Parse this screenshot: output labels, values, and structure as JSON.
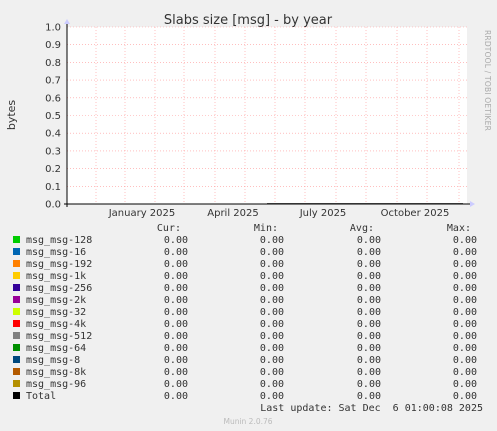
{
  "chart_data": {
    "type": "line",
    "title": "Slabs size [msg] - by year",
    "ylabel": "bytes",
    "ylim": [
      0,
      1
    ],
    "yticks": [
      "0.0",
      "0.1",
      "0.2",
      "0.3",
      "0.4",
      "0.5",
      "0.6",
      "0.7",
      "0.8",
      "0.9",
      "1.0"
    ],
    "xticks": [
      "January 2025",
      "April 2025",
      "July 2025",
      "October 2025"
    ],
    "grid": true,
    "side_label": "RRDTOOL / TOBI OETIKER",
    "legend_headers": [
      "Cur:",
      "Min:",
      "Avg:",
      "Max:"
    ],
    "series": [
      {
        "name": "msg_msg-128",
        "color": "#00cc00",
        "cur": "0.00",
        "min": "0.00",
        "avg": "0.00",
        "max": "0.00"
      },
      {
        "name": "msg_msg-16",
        "color": "#0066b3",
        "cur": "0.00",
        "min": "0.00",
        "avg": "0.00",
        "max": "0.00"
      },
      {
        "name": "msg_msg-192",
        "color": "#ff8000",
        "cur": "0.00",
        "min": "0.00",
        "avg": "0.00",
        "max": "0.00"
      },
      {
        "name": "msg_msg-1k",
        "color": "#ffcc00",
        "cur": "0.00",
        "min": "0.00",
        "avg": "0.00",
        "max": "0.00"
      },
      {
        "name": "msg_msg-256",
        "color": "#330099",
        "cur": "0.00",
        "min": "0.00",
        "avg": "0.00",
        "max": "0.00"
      },
      {
        "name": "msg_msg-2k",
        "color": "#990099",
        "cur": "0.00",
        "min": "0.00",
        "avg": "0.00",
        "max": "0.00"
      },
      {
        "name": "msg_msg-32",
        "color": "#ccff00",
        "cur": "0.00",
        "min": "0.00",
        "avg": "0.00",
        "max": "0.00"
      },
      {
        "name": "msg_msg-4k",
        "color": "#ff0000",
        "cur": "0.00",
        "min": "0.00",
        "avg": "0.00",
        "max": "0.00"
      },
      {
        "name": "msg_msg-512",
        "color": "#808080",
        "cur": "0.00",
        "min": "0.00",
        "avg": "0.00",
        "max": "0.00"
      },
      {
        "name": "msg_msg-64",
        "color": "#008f00",
        "cur": "0.00",
        "min": "0.00",
        "avg": "0.00",
        "max": "0.00"
      },
      {
        "name": "msg_msg-8",
        "color": "#00487d",
        "cur": "0.00",
        "min": "0.00",
        "avg": "0.00",
        "max": "0.00"
      },
      {
        "name": "msg_msg-8k",
        "color": "#b35a00",
        "cur": "0.00",
        "min": "0.00",
        "avg": "0.00",
        "max": "0.00"
      },
      {
        "name": "msg_msg-96",
        "color": "#b38f00",
        "cur": "0.00",
        "min": "0.00",
        "avg": "0.00",
        "max": "0.00"
      },
      {
        "name": "Total",
        "color": "#000000",
        "cur": "0.00",
        "min": "0.00",
        "avg": "0.00",
        "max": "0.00"
      }
    ],
    "last_update": "Last update: Sat Dec  6 01:00:08 2025",
    "footer": "Munin 2.0.76"
  }
}
